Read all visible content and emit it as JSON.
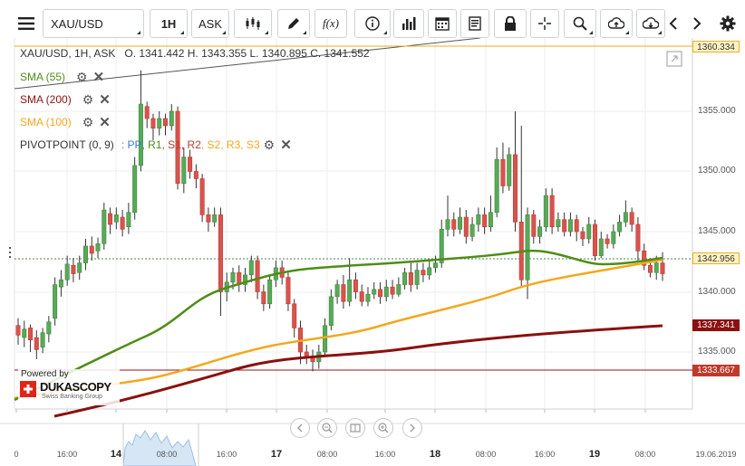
{
  "toolbar": {
    "menu_icon": "hamburger-menu-icon",
    "symbol": "XAU/USD",
    "timeframe": "1H",
    "price_side": "ASK",
    "fx_label": "f(x)"
  },
  "chart": {
    "header": "XAU/USD, 1H, ASK   O. 1341.442 H. 1343.355 L. 1340.895 C. 1341.552",
    "indicators": [
      {
        "name": "SMA (55)",
        "color": "#4e8d16"
      },
      {
        "name": "SMA (200)",
        "color": "#8b1010"
      },
      {
        "name": "SMA (100)",
        "color": "#f2a81d"
      }
    ],
    "pivot": {
      "name": "PIVOTPOINT (0, 9)",
      "items": [
        {
          "label": ": PP",
          "color": "#3a7bd5"
        },
        {
          "label": ", R1",
          "color": "#4e8d16"
        },
        {
          "label": ", S1",
          "color": "#c0392b"
        },
        {
          "label": ", R2",
          "color": "#c0392b"
        },
        {
          "label": ", S2",
          "color": "#f2a81d"
        },
        {
          "label": ", R3",
          "color": "#f2a81d"
        },
        {
          "label": ", S3",
          "color": "#f2a81d"
        }
      ]
    },
    "y_axis": [
      "1355.000",
      "1350.000",
      "1345.000",
      "1340.000",
      "1335.000"
    ],
    "price_tags": {
      "top": "1360.334",
      "current": "1342.956",
      "sma200": "1337.341",
      "bottom": "1333.667"
    },
    "x_axis": [
      {
        "label": "0",
        "bold": false
      },
      {
        "label": "16:00",
        "bold": false
      },
      {
        "label": "14",
        "bold": true
      },
      {
        "label": "08:00",
        "bold": false
      },
      {
        "label": "16:00",
        "bold": false
      },
      {
        "label": "17",
        "bold": true
      },
      {
        "label": "08:00",
        "bold": false
      },
      {
        "label": "16:00",
        "bold": false
      },
      {
        "label": "18",
        "bold": true
      },
      {
        "label": "08:00",
        "bold": false
      },
      {
        "label": "16:00",
        "bold": false
      },
      {
        "label": "19",
        "bold": true
      },
      {
        "label": "08:00",
        "bold": false
      },
      {
        "label": "19.06.2019",
        "bold": false
      }
    ],
    "branding": {
      "powered_by": "Powered by",
      "logo": "DUKASCOPY",
      "tagline": "Swiss Banking Group"
    }
  }
}
